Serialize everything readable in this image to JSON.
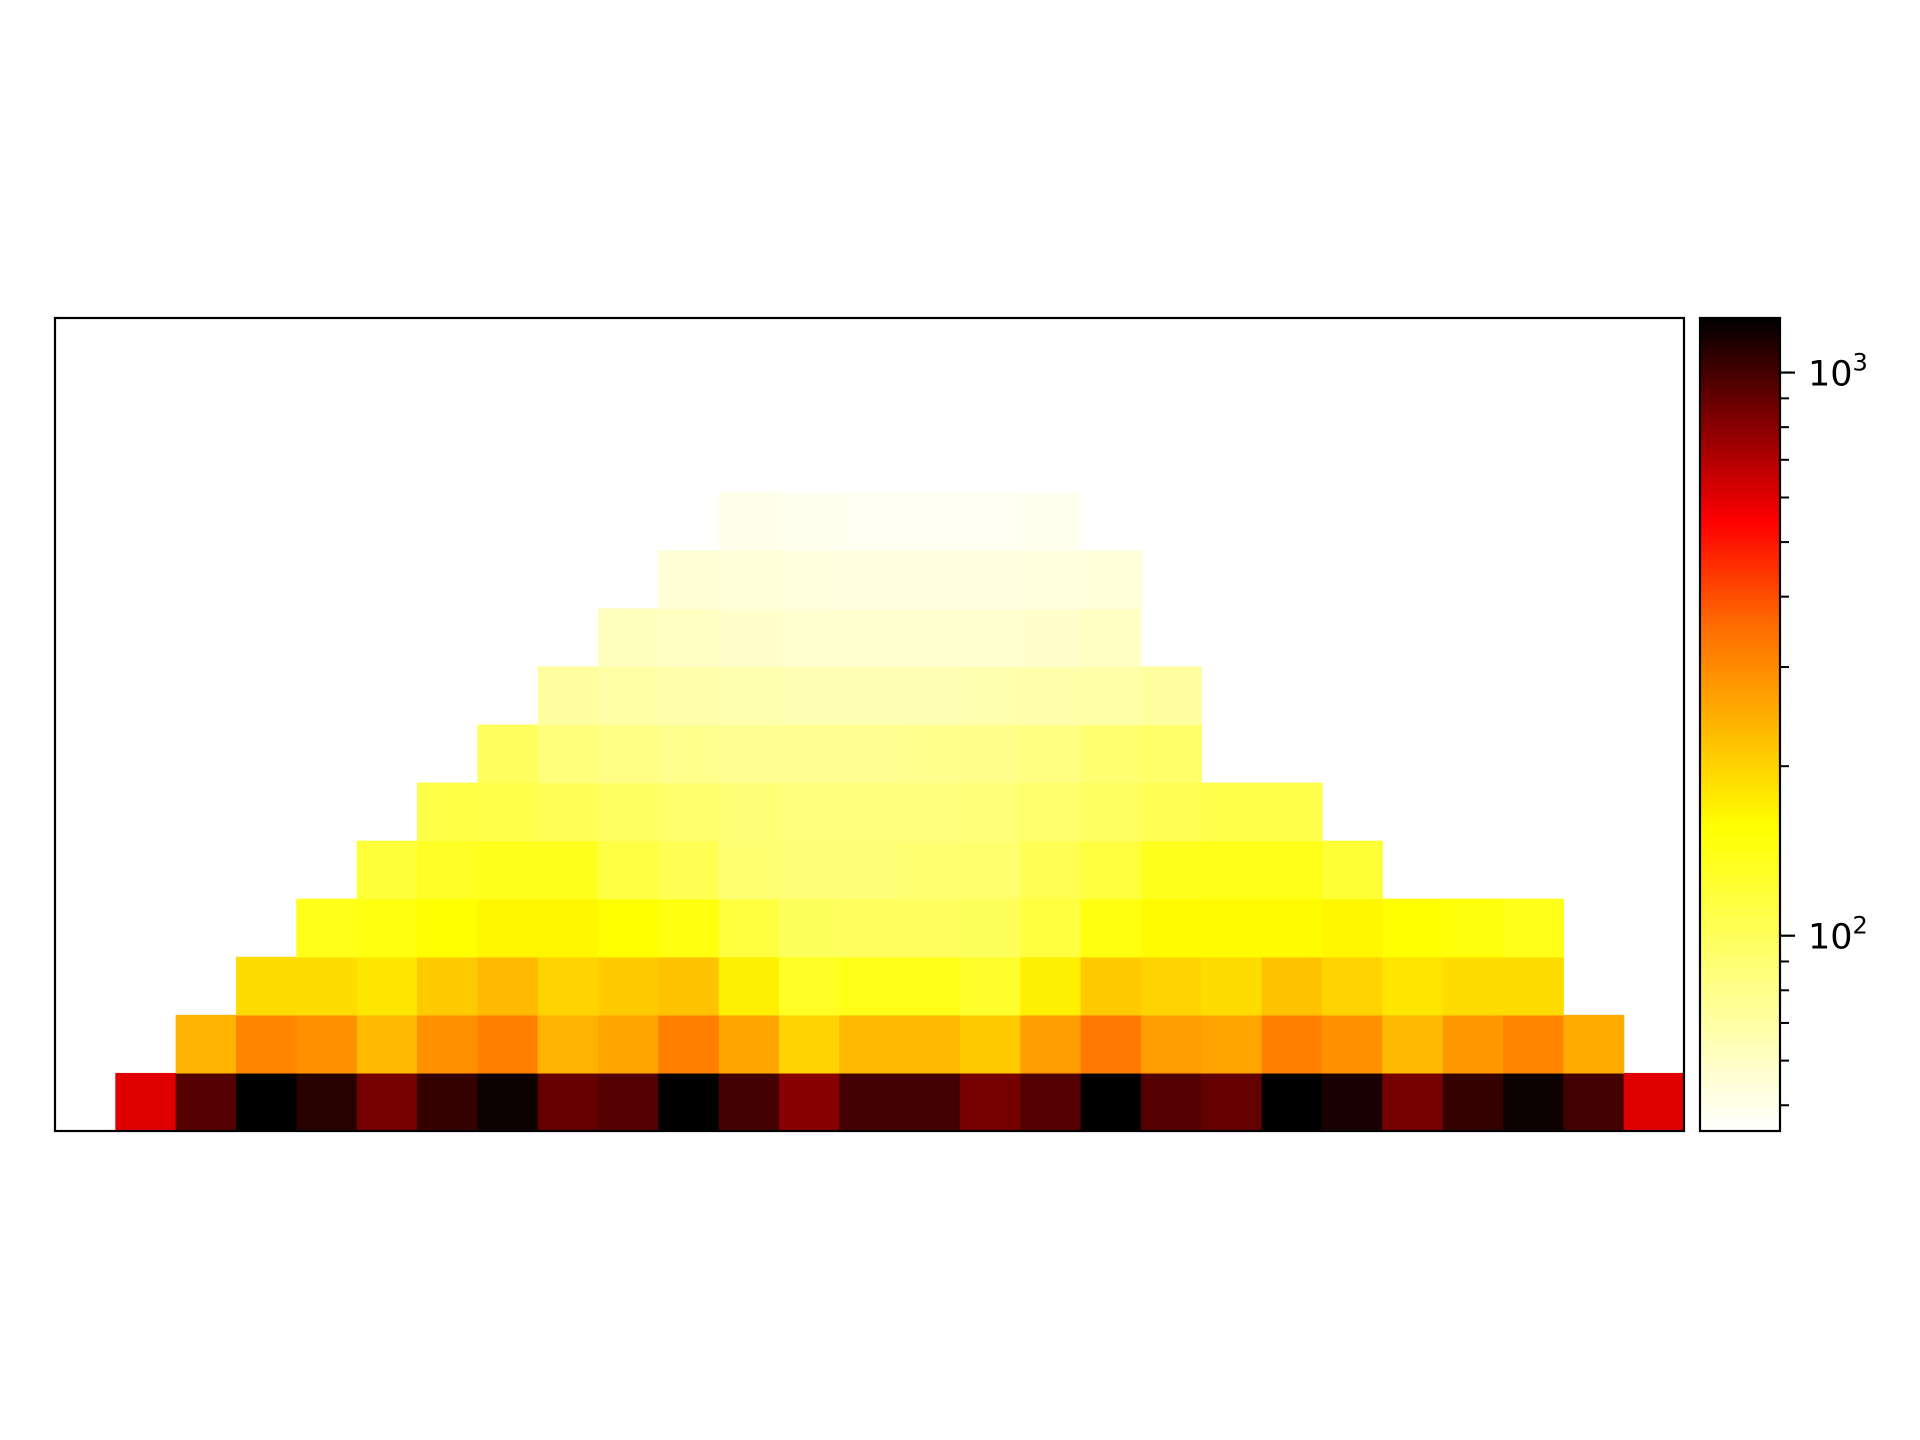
{
  "chart_data": {
    "type": "heatmap",
    "title": "",
    "xlabel": "",
    "ylabel": "",
    "colormap": "hot_r",
    "color_scale": "log",
    "grid": false,
    "axis_ticks_shown": false,
    "n_cols": 27,
    "n_rows": 14,
    "rows_bottom_to_top": [
      {
        "start": 1,
        "values": [
          600,
          950,
          1250,
          1100,
          850,
          1050,
          1200,
          900,
          950,
          1300,
          1000,
          800,
          1000,
          1000,
          850,
          950,
          1250,
          950,
          900,
          1250,
          1150,
          850,
          1050,
          1200,
          1000,
          600
        ]
      },
      {
        "start": 2,
        "values": [
          240,
          310,
          290,
          230,
          290,
          320,
          240,
          260,
          320,
          260,
          200,
          230,
          230,
          210,
          270,
          330,
          270,
          260,
          320,
          290,
          230,
          280,
          310,
          250
        ]
      },
      {
        "start": 3,
        "values": [
          190,
          190,
          180,
          210,
          230,
          200,
          210,
          220,
          170,
          130,
          140,
          140,
          125,
          170,
          210,
          200,
          190,
          220,
          200,
          180,
          190,
          190
        ]
      },
      {
        "start": 4,
        "values": [
          140,
          145,
          155,
          165,
          165,
          155,
          145,
          115,
          100,
          98,
          98,
          100,
          115,
          145,
          160,
          160,
          160,
          165,
          155,
          150,
          140
        ]
      },
      {
        "start": 5,
        "values": [
          118,
          130,
          135,
          135,
          112,
          104,
          90,
          88,
          88,
          90,
          92,
          104,
          115,
          135,
          140,
          140,
          120
        ]
      },
      {
        "start": 6,
        "values": [
          110,
          108,
          102,
          97,
          93,
          88,
          85,
          85,
          85,
          87,
          92,
          97,
          103,
          108,
          108
        ]
      },
      {
        "start": 7,
        "values": [
          99,
          86,
          82,
          78,
          77,
          77,
          77,
          78,
          80,
          83,
          90,
          94
        ]
      },
      {
        "start": 8,
        "values": [
          72,
          70,
          68,
          67,
          66,
          66,
          66,
          67,
          68,
          69,
          72
        ]
      },
      {
        "start": 9,
        "values": [
          62,
          60,
          58,
          57,
          57,
          57,
          57,
          58,
          60
        ]
      },
      {
        "start": 10,
        "values": [
          55,
          54,
          53,
          52,
          52,
          52,
          53,
          54
        ]
      },
      {
        "start": 11,
        "values": [
          50,
          49,
          48,
          48,
          48,
          49
        ]
      },
      {
        "start": 12,
        "values": [
          45,
          44,
          44,
          44
        ]
      },
      {
        "start": 13,
        "values": []
      },
      {
        "start": 14,
        "values": []
      }
    ],
    "colorbar": {
      "scale": "log",
      "range": [
        45,
        1250
      ],
      "major_ticks": [
        {
          "value": 100,
          "base": "10",
          "exp": "2"
        },
        {
          "value": 1000,
          "base": "10",
          "exp": "3"
        }
      ],
      "minor_ticks": [
        50,
        60,
        70,
        80,
        90,
        200,
        300,
        400,
        500,
        600,
        700,
        800,
        900
      ]
    }
  }
}
